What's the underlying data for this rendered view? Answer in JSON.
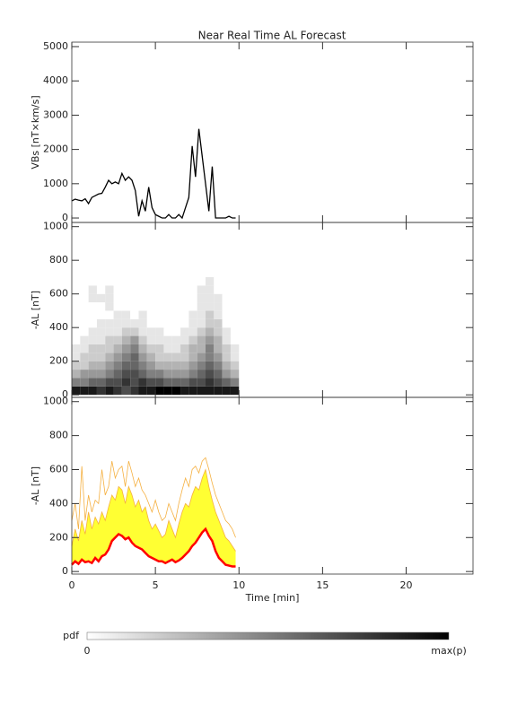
{
  "chart_data": [
    {
      "type": "line",
      "title": "Near Real Time AL Forecast",
      "ylabel": "VBs [nT×km/s]",
      "xlim": [
        0,
        24
      ],
      "ylim": [
        -130,
        5130
      ],
      "yticks": [
        0,
        1000,
        2000,
        3000,
        4000,
        5000
      ],
      "x": [
        0,
        0.2,
        0.4,
        0.6,
        0.8,
        1,
        1.2,
        1.4,
        1.6,
        1.8,
        2,
        2.2,
        2.4,
        2.6,
        2.8,
        3,
        3.2,
        3.4,
        3.6,
        3.8,
        4,
        4.2,
        4.4,
        4.6,
        4.8,
        5,
        5.2,
        5.4,
        5.6,
        5.8,
        6,
        6.2,
        6.4,
        6.6,
        6.8,
        7,
        7.2,
        7.4,
        7.6,
        7.8,
        8,
        8.2,
        8.4,
        8.6,
        8.8,
        9,
        9.2,
        9.4,
        9.6,
        9.8
      ],
      "series": [
        {
          "color": "#000000",
          "values": [
            500,
            550,
            520,
            500,
            560,
            420,
            600,
            650,
            700,
            720,
            900,
            1100,
            1000,
            1050,
            1000,
            1300,
            1100,
            1200,
            1100,
            800,
            50,
            500,
            200,
            900,
            300,
            100,
            50,
            0,
            0,
            100,
            0,
            0,
            100,
            0,
            300,
            600,
            2100,
            1200,
            2600,
            1800,
            1000,
            200,
            1500,
            0,
            0,
            0,
            0,
            50,
            0,
            0
          ]
        }
      ]
    },
    {
      "type": "heatmap",
      "ylabel": "-AL [nT]",
      "xlim": [
        0,
        24
      ],
      "ylim": [
        -15,
        1025
      ],
      "yticks": [
        0,
        200,
        400,
        600,
        800,
        1000
      ],
      "xbins": [
        0,
        0.5,
        1,
        1.5,
        2,
        2.5,
        3,
        3.5,
        4,
        4.5,
        5,
        5.5,
        6,
        6.5,
        7,
        7.5,
        8,
        8.5,
        9,
        9.5,
        10
      ],
      "ybins": [
        0,
        50,
        100,
        150,
        200,
        250,
        300,
        350,
        400,
        450,
        500,
        550,
        600,
        650,
        700
      ],
      "z": [
        [
          0.9,
          0.5,
          0.3,
          0.2,
          0.1,
          0.1,
          0,
          0,
          0,
          0,
          0,
          0,
          0,
          0
        ],
        [
          0.9,
          0.5,
          0.4,
          0.2,
          0.2,
          0.1,
          0.1,
          0,
          0,
          0,
          0,
          0,
          0,
          0
        ],
        [
          0.9,
          0.6,
          0.4,
          0.3,
          0.2,
          0.2,
          0.1,
          0.1,
          0,
          0,
          0,
          0.1,
          0.1,
          0
        ],
        [
          0.8,
          0.6,
          0.4,
          0.3,
          0.2,
          0.2,
          0.1,
          0.1,
          0.1,
          0,
          0,
          0.1,
          0,
          0
        ],
        [
          0.9,
          0.7,
          0.5,
          0.4,
          0.3,
          0.2,
          0.2,
          0.1,
          0.1,
          0,
          0.1,
          0.1,
          0.1,
          0
        ],
        [
          0.8,
          0.7,
          0.6,
          0.5,
          0.4,
          0.3,
          0.2,
          0.1,
          0.1,
          0.1,
          0,
          0,
          0,
          0
        ],
        [
          0.7,
          0.8,
          0.7,
          0.6,
          0.5,
          0.4,
          0.3,
          0.2,
          0.1,
          0.1,
          0,
          0,
          0,
          0
        ],
        [
          0.8,
          0.7,
          0.7,
          0.6,
          0.6,
          0.5,
          0.4,
          0.2,
          0.1,
          0,
          0,
          0,
          0,
          0
        ],
        [
          0.9,
          0.8,
          0.6,
          0.5,
          0.4,
          0.3,
          0.2,
          0.1,
          0.1,
          0.1,
          0,
          0,
          0,
          0
        ],
        [
          0.9,
          0.7,
          0.5,
          0.4,
          0.3,
          0.2,
          0.1,
          0.1,
          0,
          0,
          0,
          0,
          0,
          0
        ],
        [
          1.0,
          0.7,
          0.5,
          0.3,
          0.2,
          0.2,
          0.1,
          0.1,
          0,
          0,
          0,
          0,
          0,
          0
        ],
        [
          1.0,
          0.6,
          0.4,
          0.3,
          0.2,
          0.1,
          0.1,
          0,
          0,
          0,
          0,
          0,
          0,
          0
        ],
        [
          1.0,
          0.6,
          0.4,
          0.3,
          0.2,
          0.1,
          0.1,
          0,
          0,
          0,
          0,
          0,
          0,
          0
        ],
        [
          0.9,
          0.6,
          0.4,
          0.3,
          0.2,
          0.2,
          0.1,
          0.1,
          0,
          0,
          0,
          0,
          0,
          0
        ],
        [
          0.9,
          0.7,
          0.5,
          0.4,
          0.3,
          0.3,
          0.2,
          0.1,
          0.1,
          0.1,
          0,
          0,
          0,
          0
        ],
        [
          0.9,
          0.7,
          0.6,
          0.5,
          0.4,
          0.3,
          0.3,
          0.2,
          0.1,
          0.1,
          0.1,
          0.1,
          0.1,
          0
        ],
        [
          0.9,
          0.8,
          0.7,
          0.6,
          0.5,
          0.5,
          0.4,
          0.3,
          0.2,
          0.2,
          0.1,
          0.1,
          0.1,
          0.1
        ],
        [
          0.9,
          0.7,
          0.6,
          0.5,
          0.4,
          0.3,
          0.3,
          0.2,
          0.2,
          0.1,
          0.1,
          0.1,
          0,
          0
        ],
        [
          0.9,
          0.6,
          0.4,
          0.3,
          0.2,
          0.2,
          0.1,
          0.1,
          0,
          0,
          0,
          0,
          0,
          0
        ],
        [
          0.9,
          0.5,
          0.3,
          0.2,
          0.1,
          0.1,
          0,
          0,
          0,
          0,
          0,
          0,
          0,
          0
        ]
      ]
    },
    {
      "type": "band",
      "ylabel": "-AL [nT]",
      "xlabel": "Time [min]",
      "xlim": [
        0,
        24
      ],
      "xticks": [
        0,
        5,
        10,
        15,
        20
      ],
      "ylim": [
        -15,
        1025
      ],
      "yticks": [
        0,
        200,
        400,
        600,
        800,
        1000
      ],
      "fill_between": [
        1,
        2
      ],
      "x": [
        0,
        0.2,
        0.4,
        0.6,
        0.8,
        1,
        1.2,
        1.4,
        1.6,
        1.8,
        2,
        2.2,
        2.4,
        2.6,
        2.8,
        3,
        3.2,
        3.4,
        3.6,
        3.8,
        4,
        4.2,
        4.4,
        4.6,
        4.8,
        5,
        5.2,
        5.4,
        5.6,
        5.8,
        6,
        6.2,
        6.4,
        6.6,
        6.8,
        7,
        7.2,
        7.4,
        7.6,
        7.8,
        8,
        8.2,
        8.4,
        8.6,
        8.8,
        9,
        9.2,
        9.4,
        9.6,
        9.8
      ],
      "series": [
        {
          "color": "#f5b041",
          "values": [
            300,
            400,
            250,
            620,
            300,
            450,
            350,
            420,
            400,
            600,
            450,
            500,
            650,
            550,
            600,
            620,
            500,
            650,
            580,
            500,
            550,
            480,
            450,
            400,
            350,
            420,
            350,
            300,
            320,
            400,
            350,
            300,
            400,
            480,
            550,
            500,
            600,
            620,
            580,
            650,
            670,
            600,
            520,
            450,
            400,
            350,
            300,
            280,
            250,
            200
          ]
        },
        {
          "color": "#ffff33",
          "values": [
            150,
            250,
            180,
            300,
            220,
            350,
            250,
            320,
            280,
            350,
            300,
            380,
            450,
            420,
            500,
            480,
            400,
            500,
            450,
            380,
            420,
            350,
            380,
            300,
            250,
            280,
            240,
            200,
            220,
            300,
            250,
            200,
            280,
            350,
            400,
            380,
            450,
            500,
            480,
            550,
            600,
            500,
            420,
            350,
            300,
            250,
            200,
            180,
            150,
            120
          ]
        },
        {
          "color": "#ff0000",
          "values": [
            40,
            60,
            45,
            70,
            55,
            60,
            50,
            80,
            60,
            90,
            100,
            130,
            180,
            200,
            220,
            210,
            190,
            200,
            170,
            150,
            140,
            130,
            110,
            90,
            80,
            70,
            60,
            60,
            50,
            60,
            70,
            55,
            65,
            80,
            100,
            120,
            150,
            170,
            200,
            230,
            250,
            210,
            180,
            120,
            80,
            60,
            40,
            35,
            30,
            30
          ]
        }
      ]
    }
  ],
  "colorbar": {
    "label": "pdf",
    "min_label": "0",
    "max_label": "max(p)"
  }
}
